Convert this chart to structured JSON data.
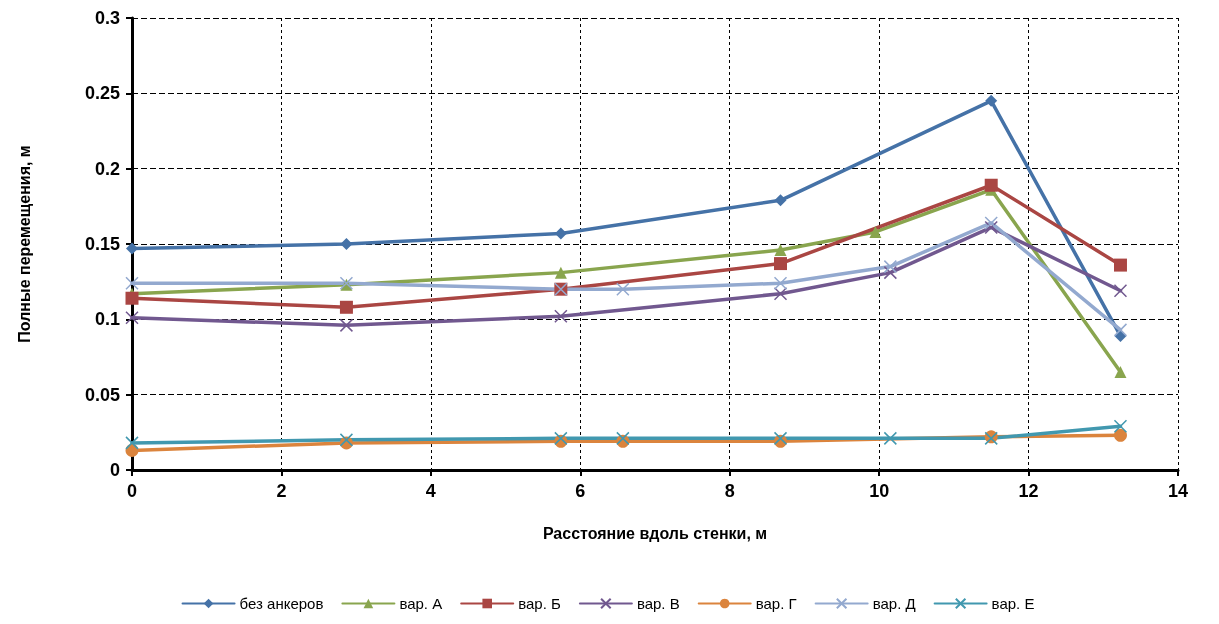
{
  "chart_data": {
    "type": "line",
    "xlabel": "Расстояние вдоль стенки, м",
    "ylabel": "Полные перемещения, м",
    "xlim": [
      0,
      14
    ],
    "xticks": [
      0,
      2,
      4,
      6,
      8,
      10,
      12,
      14
    ],
    "ylim": [
      0,
      0.3
    ],
    "yticks": [
      0,
      0.05,
      0.1,
      0.15,
      0.2,
      0.25,
      0.3
    ],
    "grid": true,
    "legend": "bottom",
    "line_style": "solid",
    "series": [
      {
        "name": "без анкеров",
        "color": "#4572a7",
        "marker": "diamond",
        "x": [
          0,
          2.87,
          5.74,
          8.68,
          11.5,
          13.23
        ],
        "values": [
          0.147,
          0.15,
          0.157,
          0.179,
          0.245,
          0.089
        ]
      },
      {
        "name": "вар. А",
        "color": "#89a54e",
        "marker": "triangle",
        "x": [
          0,
          2.87,
          5.74,
          8.68,
          9.95,
          11.5,
          13.23
        ],
        "values": [
          0.117,
          0.123,
          0.131,
          0.146,
          0.158,
          0.186,
          0.065
        ]
      },
      {
        "name": "вар. Б",
        "color": "#aa4643",
        "marker": "square",
        "x": [
          0,
          2.87,
          5.74,
          8.68,
          11.5,
          13.23
        ],
        "values": [
          0.114,
          0.108,
          0.12,
          0.137,
          0.189,
          0.136
        ]
      },
      {
        "name": "вар. В",
        "color": "#71588f",
        "marker": "cross",
        "x": [
          0,
          2.87,
          5.74,
          8.68,
          10.15,
          11.5,
          13.23
        ],
        "values": [
          0.101,
          0.096,
          0.102,
          0.117,
          0.131,
          0.161,
          0.119
        ]
      },
      {
        "name": "вар. Г",
        "color": "#db843d",
        "marker": "circle",
        "x": [
          0,
          2.87,
          5.74,
          6.57,
          8.68,
          11.5,
          13.23
        ],
        "values": [
          0.013,
          0.018,
          0.019,
          0.019,
          0.019,
          0.022,
          0.023
        ]
      },
      {
        "name": "вар. Д",
        "color": "#93a9cf",
        "marker": "cross",
        "x": [
          0,
          2.87,
          5.74,
          6.57,
          8.68,
          10.15,
          11.5,
          13.23
        ],
        "values": [
          0.124,
          0.124,
          0.12,
          0.12,
          0.124,
          0.135,
          0.164,
          0.093
        ]
      },
      {
        "name": "вар. Е",
        "color": "#4198af",
        "marker": "cross",
        "x": [
          0,
          2.87,
          5.74,
          6.57,
          8.68,
          10.15,
          11.5,
          13.23
        ],
        "values": [
          0.018,
          0.02,
          0.021,
          0.021,
          0.021,
          0.021,
          0.021,
          0.029
        ]
      }
    ]
  }
}
